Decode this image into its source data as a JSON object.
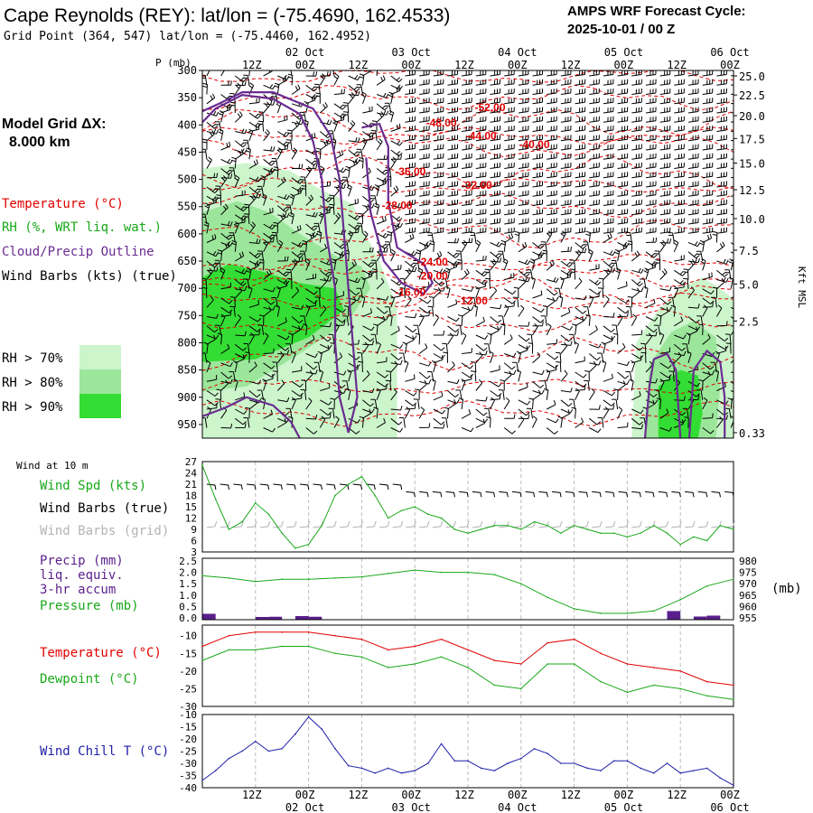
{
  "header": {
    "title": "Cape Reynolds (REY):  lat/lon = (-75.4690, 162.4533)",
    "subtitle": "Grid Point (364, 547) lat/lon = (-75.4460, 162.4952)",
    "cycle_line1": "AMPS WRF Forecast Cycle:",
    "cycle_line2": "2025-10-01 / 00  Z"
  },
  "left_legend": {
    "model_grid_label": "Model Grid ΔX:",
    "model_grid_value": "8.000 km",
    "temperature": "Temperature (°C)",
    "rh": "RH (%, WRT liq. wat.)",
    "cloud": "Cloud/Precip Outline",
    "wind": "Wind Barbs (kts) (true)",
    "rh70": "RH > 70%",
    "rh80": "RH > 80%",
    "rh90": "RH > 90%"
  },
  "colors": {
    "temperature": "#e00000",
    "rh": "#19a819",
    "cloud": "#6a2c91",
    "wind": "#000000",
    "wind_grid": "#b4b4b4",
    "rh70": "#ccf5cc",
    "rh80": "#9be69b",
    "rh90": "#33dd33",
    "windchill": "#1f1fa8",
    "precip": "#5a1f8c"
  },
  "time_axis": {
    "top_hours": [
      "12Z",
      "00Z",
      "12Z",
      "00Z",
      "12Z",
      "00Z",
      "12Z",
      "00Z",
      "12Z",
      "00Z"
    ],
    "top_dates": [
      "02 Oct",
      "03 Oct",
      "04 Oct",
      "05 Oct",
      "06 Oct"
    ],
    "bottom_hours": [
      "12Z",
      "00Z",
      "12Z",
      "00Z",
      "12Z",
      "00Z",
      "12Z",
      "00Z",
      "12Z",
      "00Z"
    ],
    "bottom_dates": [
      "02 Oct",
      "03 Oct",
      "04 Oct",
      "05 Oct",
      "06 Oct"
    ]
  },
  "chart_data": [
    {
      "type": "heatmap",
      "panel": "vertical cross-section",
      "ylabel_left": "P (mb)",
      "ylabel_right": "Kft MSL",
      "x_hours": [
        0,
        120
      ],
      "ylim": [
        300,
        975
      ],
      "pressure_ticks": [
        "300",
        "350",
        "400",
        "450",
        "500",
        "550",
        "600",
        "650",
        "700",
        "750",
        "800",
        "850",
        "900",
        "950"
      ],
      "height_ticks": [
        {
          "label": "25.0",
          "p": 310
        },
        {
          "label": "22.5",
          "p": 345
        },
        {
          "label": "20.0",
          "p": 383
        },
        {
          "label": "17.5",
          "p": 425
        },
        {
          "label": "15.0",
          "p": 470
        },
        {
          "label": "12.5",
          "p": 519
        },
        {
          "label": "10.0",
          "p": 572
        },
        {
          "label": "7.5",
          "p": 630
        },
        {
          "label": "5.0",
          "p": 692
        },
        {
          "label": "2.5",
          "p": 760
        },
        {
          "label": "0.33",
          "p": 965
        }
      ],
      "temperature_labels": [
        {
          "text": "-52.00",
          "hour": 65,
          "p": 368
        },
        {
          "text": "-48.00",
          "hour": 54,
          "p": 396
        },
        {
          "text": "-44.00",
          "hour": 63,
          "p": 420
        },
        {
          "text": "-40.00",
          "hour": 75,
          "p": 436
        },
        {
          "text": "-36.00",
          "hour": 47,
          "p": 486
        },
        {
          "text": "-32.00",
          "hour": 62,
          "p": 511
        },
        {
          "text": "-28.00",
          "hour": 44,
          "p": 548
        },
        {
          "text": "-24.00",
          "hour": 52,
          "p": 652
        },
        {
          "text": "-20.00",
          "hour": 52,
          "p": 677
        },
        {
          "text": "-16.00",
          "hour": 47,
          "p": 707
        },
        {
          "text": "-12.00",
          "hour": 61,
          "p": 723
        }
      ],
      "rh_regions": [
        {
          "level": "rh70",
          "points": [
            [
              0,
              480
            ],
            [
              10,
              470
            ],
            [
              20,
              485
            ],
            [
              27,
              520
            ],
            [
              34,
              545
            ],
            [
              36,
              588
            ],
            [
              40,
              650
            ],
            [
              44,
              735
            ],
            [
              44,
              975
            ],
            [
              20,
              975
            ],
            [
              0,
              975
            ]
          ]
        },
        {
          "level": "rh80",
          "points": [
            [
              0,
              560
            ],
            [
              8,
              540
            ],
            [
              15,
              560
            ],
            [
              22,
              600
            ],
            [
              30,
              640
            ],
            [
              36,
              660
            ],
            [
              38,
              700
            ],
            [
              33,
              760
            ],
            [
              22,
              820
            ],
            [
              10,
              880
            ],
            [
              0,
              890
            ]
          ]
        },
        {
          "level": "rh90",
          "points": [
            [
              0,
              680
            ],
            [
              6,
              655
            ],
            [
              14,
              670
            ],
            [
              22,
              690
            ],
            [
              30,
              700
            ],
            [
              32,
              740
            ],
            [
              24,
              790
            ],
            [
              12,
              830
            ],
            [
              0,
              835
            ]
          ]
        },
        {
          "level": "rh70",
          "points": [
            [
              97,
              975
            ],
            [
              98,
              800
            ],
            [
              103,
              740
            ],
            [
              108,
              700
            ],
            [
              113,
              680
            ],
            [
              117,
              700
            ],
            [
              120,
              720
            ],
            [
              120,
              975
            ]
          ]
        },
        {
          "level": "rh80",
          "points": [
            [
              100,
              975
            ],
            [
              101,
              840
            ],
            [
              106,
              780
            ],
            [
              111,
              760
            ],
            [
              116,
              790
            ],
            [
              117,
              880
            ],
            [
              116,
              975
            ]
          ]
        },
        {
          "level": "rh90",
          "points": [
            [
              103,
              975
            ],
            [
              103,
              880
            ],
            [
              108,
              850
            ],
            [
              112,
              860
            ],
            [
              113,
              930
            ],
            [
              112,
              975
            ]
          ]
        }
      ],
      "cloud_outlines": [
        {
          "points": [
            [
              0,
              395
            ],
            [
              3,
              370
            ],
            [
              9,
              345
            ],
            [
              16,
              352
            ],
            [
              22,
              380
            ],
            [
              25,
              430
            ],
            [
              27,
              500
            ],
            [
              28,
              600
            ],
            [
              30,
              700
            ],
            [
              30,
              800
            ],
            [
              31,
              900
            ],
            [
              33,
              965
            ],
            [
              35,
              900
            ],
            [
              34,
              800
            ],
            [
              33,
              700
            ],
            [
              32,
              600
            ],
            [
              31,
              500
            ],
            [
              29,
              420
            ],
            [
              25,
              370
            ],
            [
              16,
              340
            ],
            [
              9,
              340
            ],
            [
              4,
              360
            ],
            [
              0,
              375
            ]
          ]
        },
        {
          "points": [
            [
              0,
              935
            ],
            [
              5,
              920
            ],
            [
              10,
              900
            ],
            [
              16,
              915
            ],
            [
              20,
              945
            ],
            [
              22,
              975
            ]
          ]
        },
        {
          "points": [
            [
              36,
              405
            ],
            [
              40,
              398
            ],
            [
              42,
              440
            ],
            [
              42,
              540
            ],
            [
              44,
              625
            ],
            [
              50,
              655
            ],
            [
              52,
              690
            ],
            [
              50,
              710
            ],
            [
              45,
              690
            ],
            [
              41,
              650
            ],
            [
              38,
              560
            ],
            [
              37,
              460
            ]
          ]
        },
        {
          "points": [
            [
              100,
              975
            ],
            [
              101,
              880
            ],
            [
              102,
              830
            ],
            [
              105,
              820
            ],
            [
              107,
              850
            ],
            [
              108,
              975
            ]
          ]
        },
        {
          "points": [
            [
              110,
              975
            ],
            [
              111,
              850
            ],
            [
              114,
              815
            ],
            [
              117,
              835
            ],
            [
              118,
              900
            ],
            [
              118,
              975
            ]
          ]
        }
      ]
    },
    {
      "type": "line",
      "panel": "10 m wind",
      "title": "Wind at 10 m",
      "ylabel": "Wind Spd (kts)",
      "y_ticks": [
        3,
        6,
        9,
        12,
        15,
        18,
        21,
        24,
        27
      ],
      "ylim": [
        3,
        27
      ],
      "series": [
        {
          "name": "Wind Spd (kts)",
          "x": [
            0,
            3,
            6,
            9,
            12,
            15,
            18,
            21,
            24,
            27,
            30,
            33,
            36,
            39,
            42,
            45,
            48,
            51,
            54,
            57,
            60,
            63,
            66,
            69,
            72,
            75,
            78,
            81,
            84,
            87,
            90,
            93,
            96,
            99,
            102,
            105,
            108,
            111,
            114,
            117,
            120
          ],
          "values": [
            26,
            17,
            9,
            11,
            16,
            13,
            8,
            4,
            5,
            10,
            18,
            21,
            23,
            18,
            12,
            14,
            15,
            13,
            12,
            9,
            8,
            9,
            10,
            10,
            9,
            11,
            10,
            8,
            10,
            9,
            8,
            8,
            7,
            8,
            10,
            8,
            5,
            7,
            6,
            10,
            9
          ]
        }
      ],
      "legend": [
        "Wind Spd (kts)",
        "Wind Barbs (true)",
        "Wind Barbs (grid)"
      ]
    },
    {
      "type": "line",
      "panel": "precip and pressure",
      "ylabel_left": "Precip (mm)",
      "ylabel_left_2": "liq. equiv.",
      "ylabel_left_3": "3-hr accum",
      "ylabel_left_4": "Pressure (mb)",
      "ylabel_right": "(mb)",
      "left_ticks": [
        "0.0",
        "0.5",
        "1.0",
        "1.5",
        "2.0",
        "2.5"
      ],
      "right_ticks": [
        "955",
        "960",
        "965",
        "970",
        "975",
        "980"
      ],
      "precip_ylim": [
        0,
        2.5
      ],
      "pressure_ylim": [
        955,
        980
      ],
      "precip_bars": [
        {
          "hour": 0,
          "value": 0.18
        },
        {
          "hour": 12,
          "value": 0.04
        },
        {
          "hour": 15,
          "value": 0.05
        },
        {
          "hour": 21,
          "value": 0.08
        },
        {
          "hour": 24,
          "value": 0.05
        },
        {
          "hour": 105,
          "value": 0.3
        },
        {
          "hour": 111,
          "value": 0.06
        },
        {
          "hour": 114,
          "value": 0.1
        }
      ],
      "series": [
        {
          "name": "Pressure (mb)",
          "x": [
            0,
            6,
            12,
            18,
            24,
            30,
            36,
            42,
            48,
            54,
            60,
            66,
            72,
            78,
            84,
            90,
            96,
            102,
            108,
            114,
            120
          ],
          "values": [
            973.5,
            972.5,
            971,
            972,
            972,
            972.5,
            973,
            974.5,
            976,
            975,
            975,
            974,
            970,
            964,
            959,
            957,
            957,
            958,
            963,
            969,
            972
          ]
        }
      ]
    },
    {
      "type": "line",
      "panel": "temperature and dewpoint",
      "y_ticks": [
        "-10",
        "-15",
        "-20",
        "-25",
        "-30"
      ],
      "ylim": [
        -30,
        -7
      ],
      "series": [
        {
          "name": "Temperature (°C)",
          "x": [
            0,
            6,
            12,
            18,
            24,
            30,
            36,
            42,
            48,
            54,
            60,
            66,
            72,
            78,
            84,
            90,
            96,
            102,
            108,
            114,
            120
          ],
          "values": [
            -13,
            -10,
            -9,
            -9,
            -9,
            -10,
            -11,
            -14,
            -13,
            -11,
            -14,
            -17,
            -18,
            -12,
            -11,
            -15,
            -18,
            -19,
            -20,
            -23,
            -24
          ]
        },
        {
          "name": "Dewpoint (°C)",
          "x": [
            0,
            6,
            12,
            18,
            24,
            30,
            36,
            42,
            48,
            54,
            60,
            66,
            72,
            78,
            84,
            90,
            96,
            102,
            108,
            114,
            120
          ],
          "values": [
            -17,
            -14,
            -14,
            -13,
            -13,
            -15,
            -16,
            -19,
            -18,
            -16,
            -19,
            -24,
            -25,
            -18,
            -18,
            -23,
            -26,
            -24,
            -25,
            -27,
            -28
          ]
        }
      ]
    },
    {
      "type": "line",
      "panel": "wind chill",
      "y_ticks": [
        "-10",
        "-15",
        "-20",
        "-25",
        "-30",
        "-35",
        "-40"
      ],
      "ylim": [
        -40,
        -10
      ],
      "series": [
        {
          "name": "Wind Chill T (°C)",
          "x": [
            0,
            3,
            6,
            9,
            12,
            15,
            18,
            21,
            24,
            27,
            30,
            33,
            36,
            39,
            42,
            45,
            48,
            51,
            54,
            57,
            60,
            63,
            66,
            69,
            72,
            75,
            78,
            81,
            84,
            87,
            90,
            93,
            96,
            99,
            102,
            105,
            108,
            111,
            114,
            117,
            120
          ],
          "values": [
            -37,
            -33,
            -28,
            -25,
            -21,
            -25,
            -24,
            -18,
            -11,
            -16,
            -24,
            -31,
            -32,
            -34,
            -32,
            -34,
            -33,
            -30,
            -22,
            -29,
            -29,
            -32,
            -33,
            -30,
            -28,
            -24,
            -26,
            -30,
            -30,
            -32,
            -33,
            -29,
            -29,
            -32,
            -34,
            -30,
            -34,
            -33,
            -32,
            -36,
            -39
          ]
        }
      ]
    }
  ]
}
